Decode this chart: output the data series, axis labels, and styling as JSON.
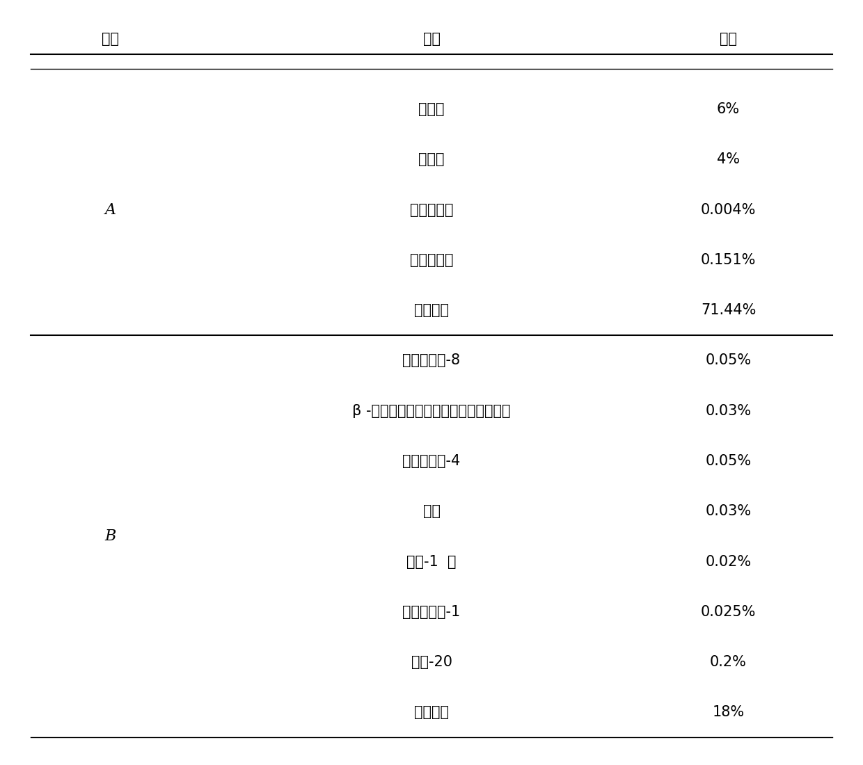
{
  "header": [
    "编号",
    "名称",
    "含量"
  ],
  "group_A": {
    "label": "A",
    "rows": [
      [
        "甘露醇",
        "6%"
      ],
      [
        "海藻糖",
        "4%"
      ],
      [
        "磷酸氢二钠",
        "0.004%"
      ],
      [
        "磷酸二氢钠",
        "0.151%"
      ],
      [
        "注射用水",
        "71.44%"
      ]
    ]
  },
  "group_B": {
    "label": "B",
    "rows": [
      [
        "乙酰基六肽-8",
        "0.05%"
      ],
      [
        "β -丙氨酰羟脯氨酰二氨基丁酰苄基酰胺",
        "0.03%"
      ],
      [
        "棕榈酰五肽-4",
        "0.05%"
      ],
      [
        "肌肽",
        "0.03%"
      ],
      [
        "三肽-1  铜",
        "0.02%"
      ],
      [
        "棕榈酰三肽-1",
        "0.025%"
      ],
      [
        "吐温-20",
        "0.2%"
      ],
      [
        "注射用水",
        "18%"
      ]
    ]
  },
  "bg_color": "#ffffff",
  "text_color": "#000000",
  "line_color": "#000000",
  "font_size": 15,
  "header_font_size": 15
}
